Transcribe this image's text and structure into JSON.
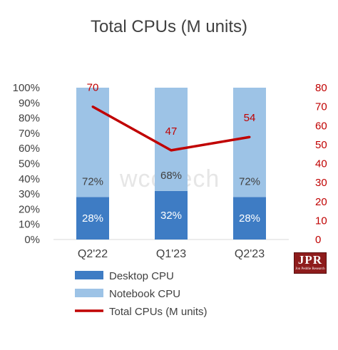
{
  "chart_data": {
    "type": "bar",
    "stacked": true,
    "title": "Total CPUs (M units)",
    "categories": [
      "Q2'22",
      "Q1'23",
      "Q2'23"
    ],
    "series": [
      {
        "name": "Desktop CPU",
        "type": "bar",
        "axis": "left",
        "values": [
          28,
          32,
          28
        ],
        "labels": [
          "28%",
          "32%",
          "28%"
        ],
        "color": "#3e7cc4"
      },
      {
        "name": "Notebook CPU",
        "type": "bar",
        "axis": "left",
        "values": [
          72,
          68,
          72
        ],
        "labels": [
          "72%",
          "68%",
          "72%"
        ],
        "color": "#9dc3e6"
      },
      {
        "name": "Total CPUs (M units)",
        "type": "line",
        "axis": "right",
        "values": [
          70,
          47,
          54
        ],
        "labels": [
          "70",
          "47",
          "54"
        ],
        "color": "#c00000"
      }
    ],
    "y_left": {
      "range": [
        0,
        100
      ],
      "ticks": [
        "0%",
        "10%",
        "20%",
        "30%",
        "40%",
        "50%",
        "60%",
        "70%",
        "80%",
        "90%",
        "100%"
      ]
    },
    "y_right": {
      "range": [
        0,
        80
      ],
      "ticks": [
        "0",
        "10",
        "20",
        "30",
        "40",
        "50",
        "60",
        "70",
        "80"
      ],
      "color": "#c00000"
    },
    "grid": false,
    "legend": "bottom-left"
  },
  "watermark": "wccftech",
  "logo": {
    "main": "JPR",
    "sub": "Jon Peddie Research"
  }
}
